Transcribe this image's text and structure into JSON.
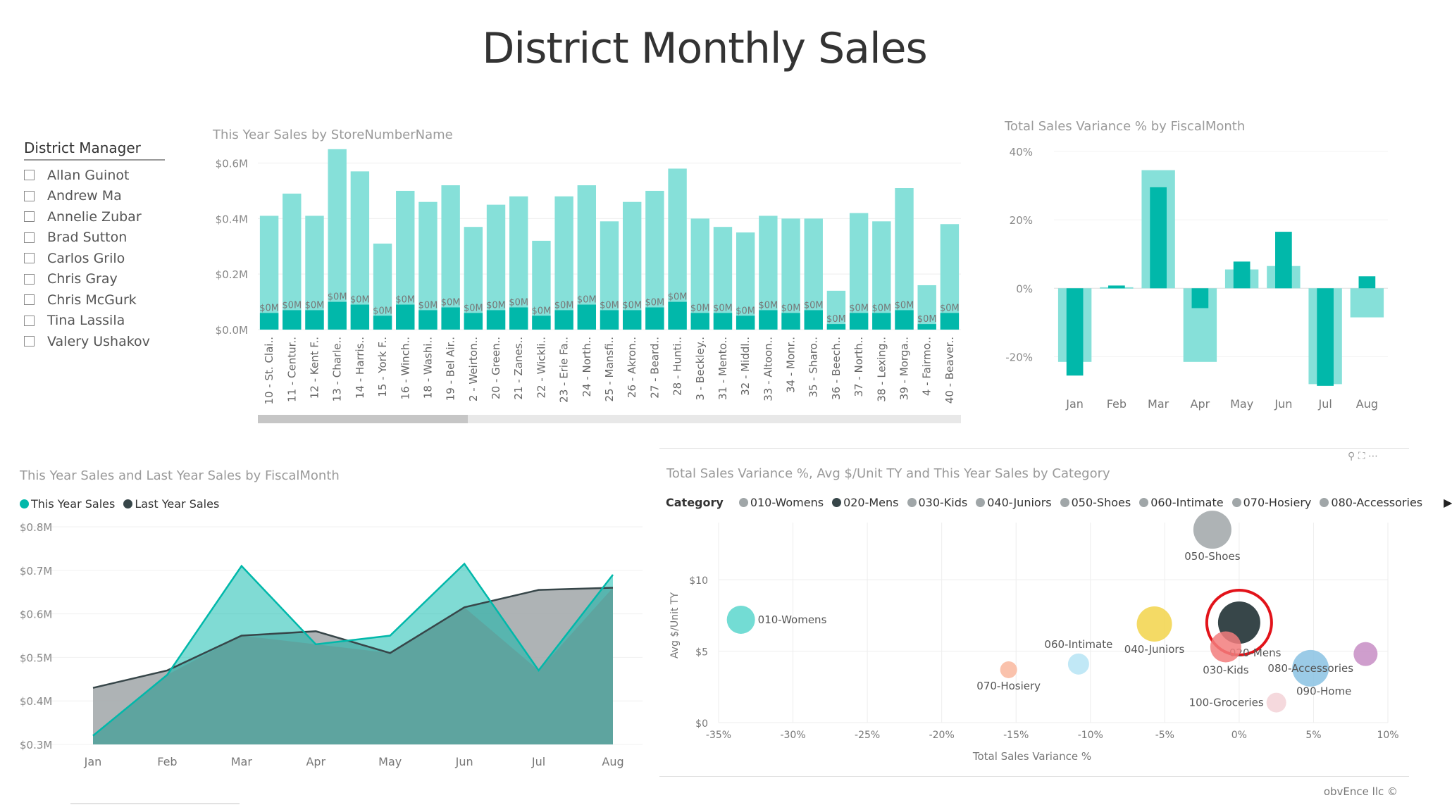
{
  "page": {
    "title": "District Monthly Sales",
    "footer": "obvEnce llc ©"
  },
  "slicer": {
    "header": "District Manager",
    "items": [
      "Allan Guinot",
      "Andrew Ma",
      "Annelie Zubar",
      "Brad Sutton",
      "Carlos Grilo",
      "Chris Gray",
      "Chris McGurk",
      "Tina Lassila",
      "Valery Ushakov"
    ]
  },
  "colors": {
    "teal": "#01B8AA",
    "teal_light": "#86E0D9",
    "dark": "#374649",
    "grey": "#A0A6A8"
  },
  "chart_data": [
    {
      "id": "store-bar",
      "type": "bar",
      "title": "This Year Sales by StoreNumberName",
      "categories": [
        "10 - St. Clai..",
        "11 - Centur..",
        "12 - Kent F..",
        "13 - Charle..",
        "14 - Harris..",
        "15 - York F..",
        "16 - Winch..",
        "18 - Washi..",
        "19 - Bel Air..",
        "2 - Weirton..",
        "20 - Green..",
        "21 - Zanes..",
        "22 - Wickli..",
        "23 - Erie Fa..",
        "24 - North..",
        "25 - Mansfi..",
        "26 - Akron..",
        "27 - Beard..",
        "28 - Hunti..",
        "3 - Beckley..",
        "31 - Mento..",
        "32 - Middl..",
        "33 - Altoon..",
        "34 - Monr..",
        "35 - Sharo..",
        "36 - Beech..",
        "37 - North..",
        "38 - Lexing..",
        "39 - Morga..",
        "4 - Fairmo..",
        "40 - Beaver.."
      ],
      "series": [
        {
          "name": "This Year Sales",
          "values": [
            0.41,
            0.49,
            0.41,
            0.65,
            0.57,
            0.31,
            0.5,
            0.46,
            0.52,
            0.37,
            0.45,
            0.48,
            0.32,
            0.48,
            0.52,
            0.39,
            0.46,
            0.5,
            0.58,
            0.4,
            0.37,
            0.35,
            0.41,
            0.4,
            0.4,
            0.14,
            0.42,
            0.39,
            0.51,
            0.16,
            0.38
          ]
        },
        {
          "name": "",
          "values": [
            0.06,
            0.07,
            0.07,
            0.1,
            0.09,
            0.05,
            0.09,
            0.07,
            0.08,
            0.06,
            0.07,
            0.08,
            0.05,
            0.07,
            0.09,
            0.07,
            0.07,
            0.08,
            0.1,
            0.06,
            0.06,
            0.05,
            0.07,
            0.06,
            0.07,
            0.02,
            0.06,
            0.06,
            0.07,
            0.02,
            0.06
          ]
        }
      ],
      "data_labels": "$0M",
      "y_ticks": [
        "$0.0M",
        "$0.2M",
        "$0.4M",
        "$0.6M"
      ],
      "ylim": [
        0,
        0.68
      ]
    },
    {
      "id": "variance-bar",
      "type": "bar",
      "title": "Total Sales Variance % by FiscalMonth",
      "categories": [
        "Jan",
        "Feb",
        "Mar",
        "Apr",
        "May",
        "Jun",
        "Jul",
        "Aug"
      ],
      "series": [
        {
          "name": "",
          "values": [
            -21.5,
            0.3,
            34.5,
            -21.5,
            5.5,
            6.5,
            -28,
            -8.5
          ]
        },
        {
          "name": "",
          "values": [
            -25.5,
            0.8,
            29.5,
            -5.8,
            7.8,
            16.5,
            -28.5,
            3.5
          ]
        }
      ],
      "y_ticks": [
        "-20%",
        "0%",
        "20%",
        "40%"
      ],
      "y_tick_values": [
        -20,
        0,
        20,
        40
      ],
      "ylim": [
        -31,
        41
      ]
    },
    {
      "id": "area-line",
      "type": "area",
      "title": "This Year Sales and Last Year Sales by FiscalMonth",
      "categories": [
        "Jan",
        "Feb",
        "Mar",
        "Apr",
        "May",
        "Jun",
        "Jul",
        "Aug"
      ],
      "series": [
        {
          "name": "This Year Sales",
          "values": [
            0.32,
            0.46,
            0.71,
            0.53,
            0.55,
            0.715,
            0.47,
            0.69
          ]
        },
        {
          "name": "Last Year Sales",
          "values": [
            0.43,
            0.47,
            0.55,
            0.56,
            0.51,
            0.615,
            0.655,
            0.66
          ]
        }
      ],
      "y_ticks": [
        "$0.3M",
        "$0.4M",
        "$0.5M",
        "$0.6M",
        "$0.7M",
        "$0.8M"
      ],
      "y_tick_values": [
        0.3,
        0.4,
        0.5,
        0.6,
        0.7,
        0.8
      ],
      "ylim": [
        0.3,
        0.8
      ]
    },
    {
      "id": "bubble",
      "type": "scatter",
      "title": "Total Sales Variance %, Avg $/Unit TY and This Year Sales by Category",
      "xlabel": "Total Sales Variance %",
      "ylabel": "Avg $/Unit TY",
      "legend_title": "Category",
      "legend_items": [
        "010-Womens",
        "020-Mens",
        "030-Kids",
        "040-Juniors",
        "050-Shoes",
        "060-Intimate",
        "070-Hosiery",
        "080-Accessories"
      ],
      "x_ticks": [
        "-35%",
        "-30%",
        "-25%",
        "-20%",
        "-15%",
        "-10%",
        "-5%",
        "0%",
        "5%",
        "10%"
      ],
      "x_tick_values": [
        -35,
        -30,
        -25,
        -20,
        -15,
        -10,
        -5,
        0,
        5,
        10
      ],
      "y_ticks": [
        "$0",
        "$5",
        "$10"
      ],
      "y_tick_values": [
        0,
        5,
        10
      ],
      "xlim": [
        -35,
        10
      ],
      "ylim": [
        0,
        14
      ],
      "points": [
        {
          "label": "010-Womens",
          "x": -33.5,
          "y": 7.2,
          "r": 20,
          "color": "#5BD6CC"
        },
        {
          "label": "020-Mens",
          "x": 0.0,
          "y": 7.0,
          "r": 30,
          "color": "#374649",
          "highlight": true
        },
        {
          "label": "030-Kids",
          "x": -0.9,
          "y": 5.3,
          "r": 22,
          "color": "#F27C7C"
        },
        {
          "label": "040-Juniors",
          "x": -5.7,
          "y": 6.9,
          "r": 25,
          "color": "#F2D44A"
        },
        {
          "label": "050-Shoes",
          "x": -1.8,
          "y": 13.5,
          "r": 27,
          "color": "#A0A6A8"
        },
        {
          "label": "060-Intimate",
          "x": -10.8,
          "y": 4.1,
          "r": 15,
          "color": "#B6E4F5"
        },
        {
          "label": "070-Hosiery",
          "x": -15.5,
          "y": 3.7,
          "r": 12,
          "color": "#F9B79E"
        },
        {
          "label": "080-Accessories",
          "x": 4.8,
          "y": 3.8,
          "r": 26,
          "color": "#8AC2E3"
        },
        {
          "label": "090-Home",
          "x": 8.5,
          "y": 4.8,
          "r": 17,
          "color": "#C78DC4"
        },
        {
          "label": "100-Groceries",
          "x": 2.5,
          "y": 1.4,
          "r": 14,
          "color": "#F3D2D7"
        }
      ],
      "label_positions": {
        "010-Womens": "right",
        "020-Mens": "below-right",
        "030-Kids": "below",
        "040-Juniors": "below",
        "050-Shoes": "below",
        "060-Intimate": "above",
        "070-Hosiery": "below",
        "080-Accessories": "center",
        "090-Home": "below-left",
        "100-Groceries": "left"
      }
    }
  ]
}
